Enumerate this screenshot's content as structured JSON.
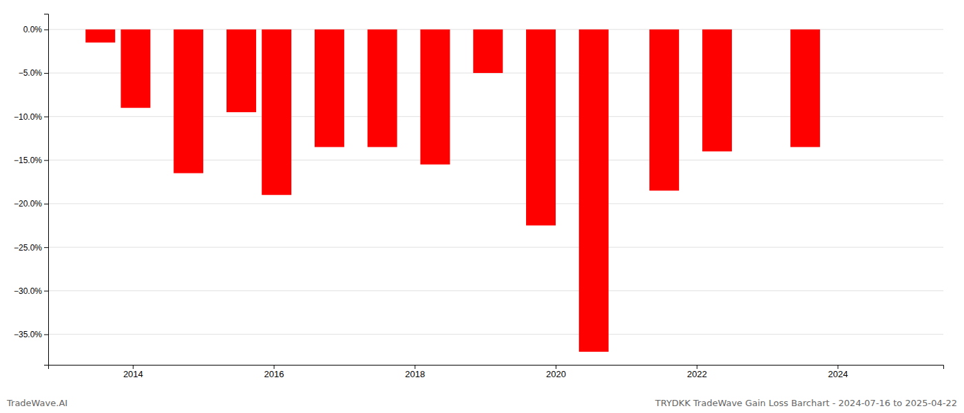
{
  "chart_data": {
    "type": "bar",
    "title": "TRYDKK TradeWave Gain Loss Barchart - 2024-07-16 to 2025-04-22",
    "annotations": [
      "TradeWave.AI"
    ],
    "x": [
      2013.54,
      2014.04,
      2014.79,
      2015.54,
      2016.04,
      2016.79,
      2017.54,
      2018.29,
      2019.04,
      2019.79,
      2020.54,
      2021.54,
      2022.29,
      2023.54
    ],
    "values": [
      -1.5,
      -9.0,
      -16.5,
      -9.5,
      -19.0,
      -13.5,
      -13.5,
      -15.5,
      -5.0,
      -22.5,
      -37.0,
      -18.5,
      -14.0,
      -13.5
    ],
    "color": "#ff0000",
    "xlim": [
      2012.8,
      2025.5
    ],
    "xticks": [
      2014,
      2016,
      2018,
      2020,
      2022,
      2024
    ],
    "ylim": [
      -38.5,
      1.8
    ],
    "yticks": [
      {
        "value": 0.0,
        "label": "0.0%"
      },
      {
        "value": -5.0,
        "label": "−5.0%"
      },
      {
        "value": -10.0,
        "label": "−10.0%"
      },
      {
        "value": -15.0,
        "label": "−15.0%"
      },
      {
        "value": -20.0,
        "label": "−20.0%"
      },
      {
        "value": -25.0,
        "label": "−25.0%"
      },
      {
        "value": -30.0,
        "label": "−30.0%"
      },
      {
        "value": -35.0,
        "label": "−35.0%"
      }
    ],
    "grid": "y"
  }
}
